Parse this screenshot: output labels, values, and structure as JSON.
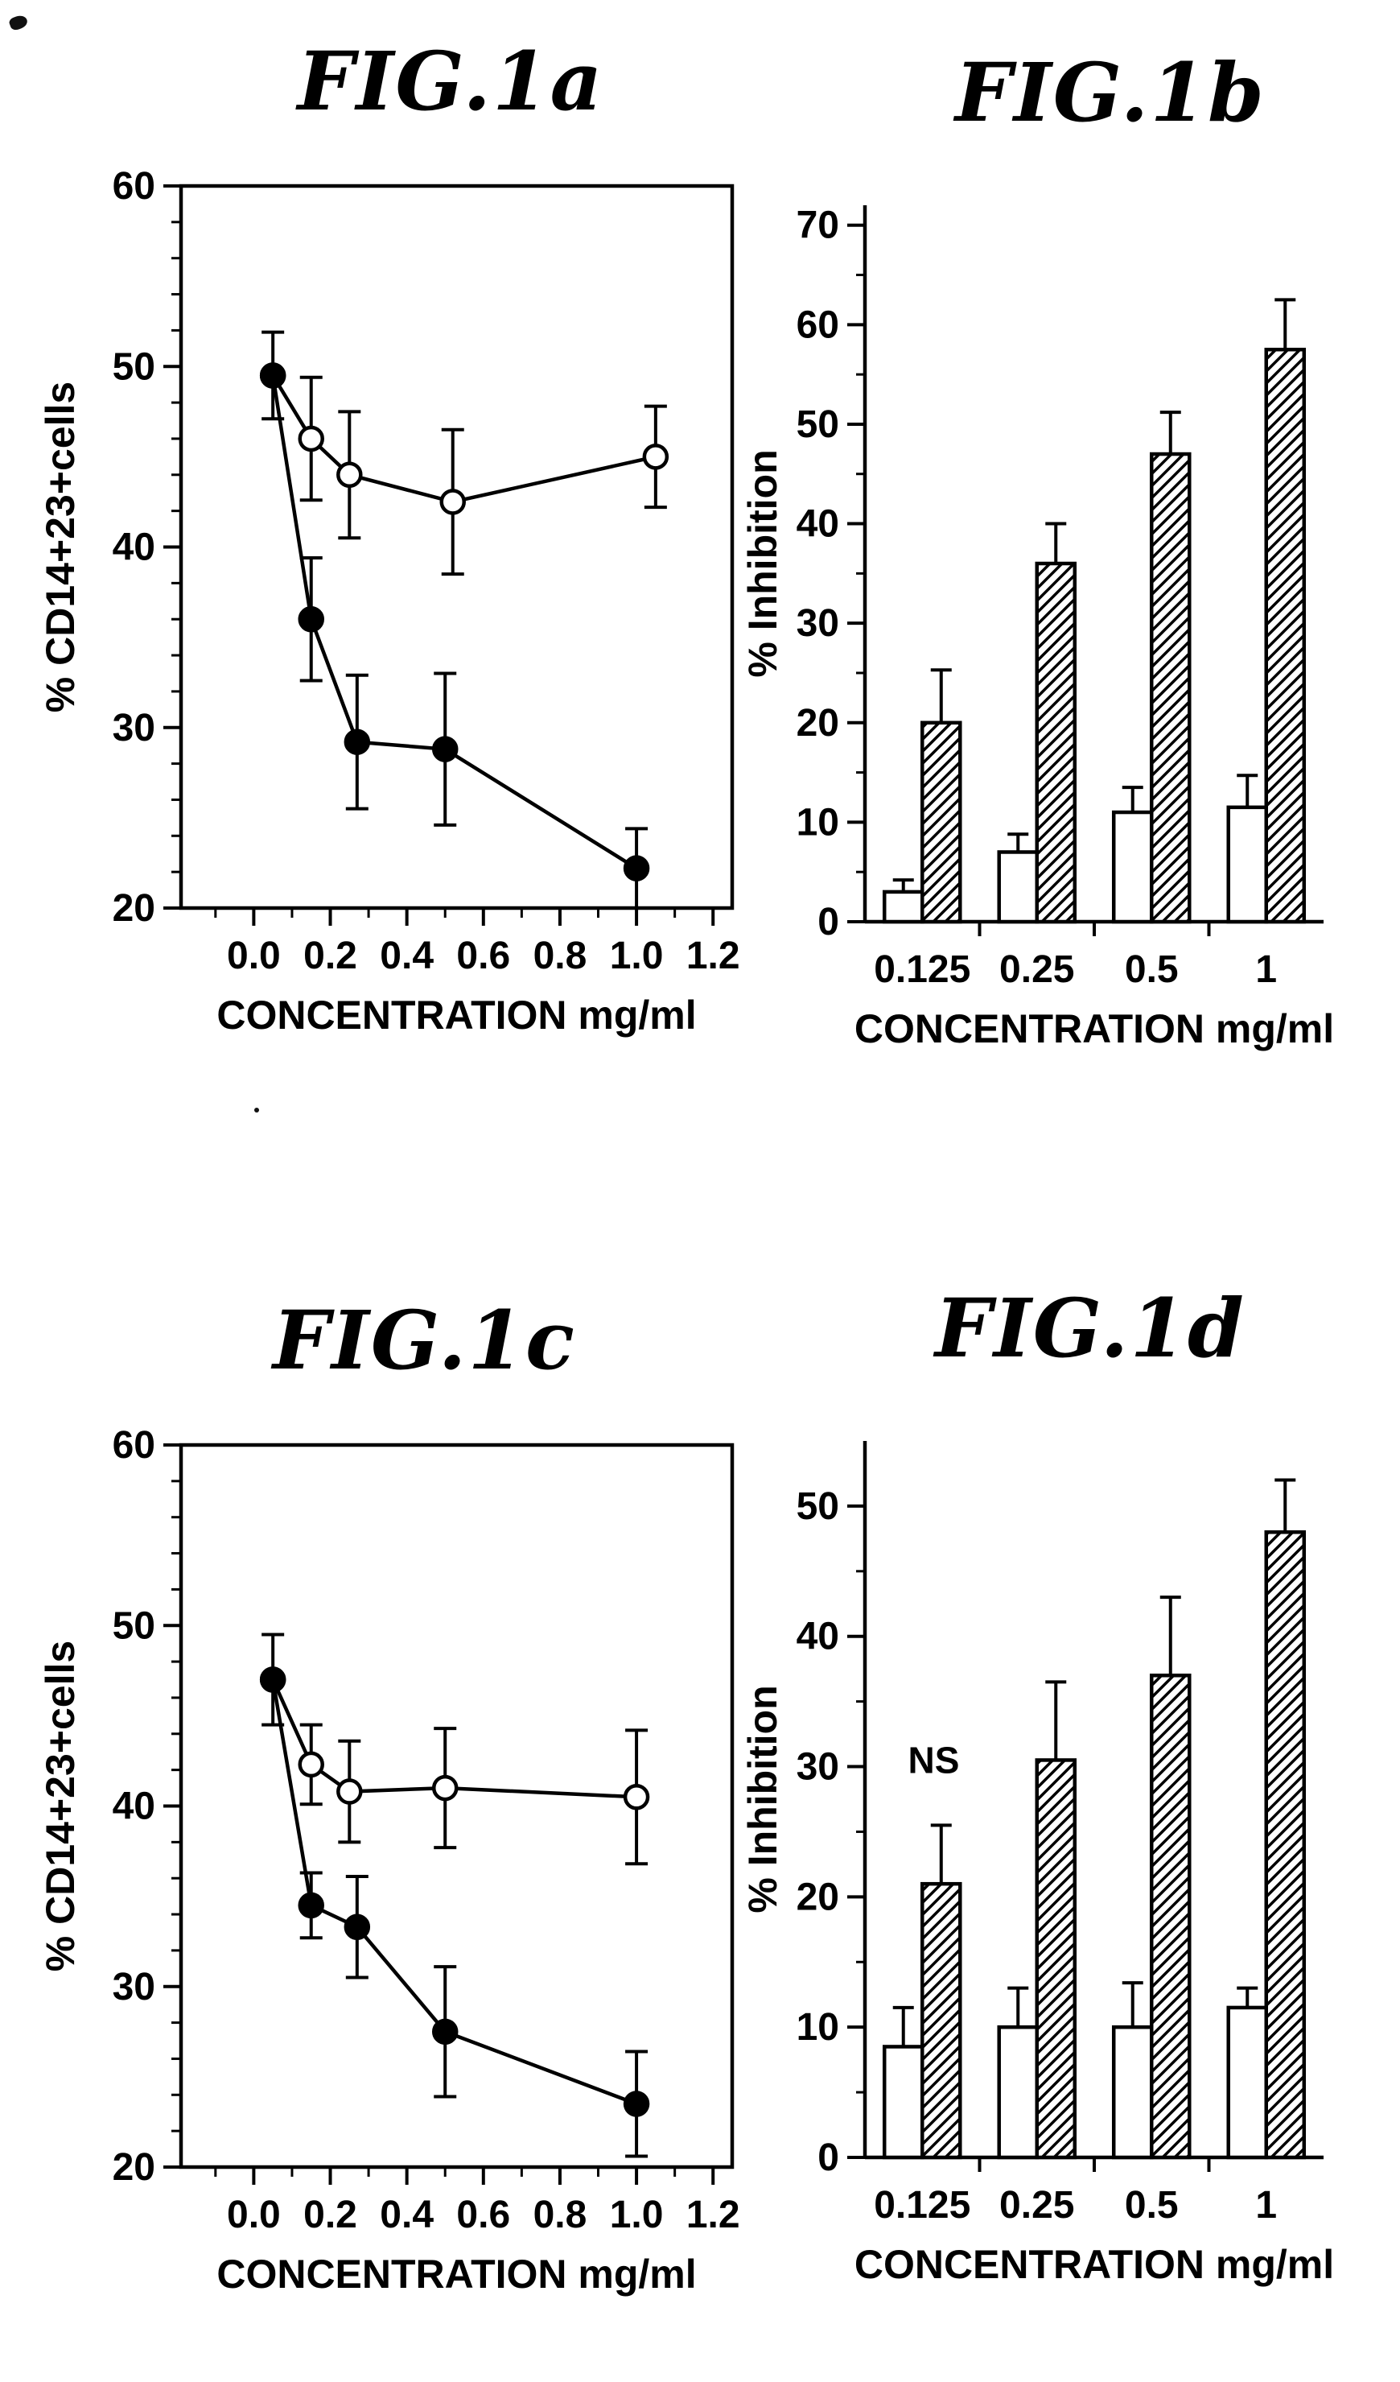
{
  "page": {
    "background": "#ffffff",
    "ink": "#000000"
  },
  "figures": [
    {
      "id": "fig1a",
      "title": "FIG.1a"
    },
    {
      "id": "fig1b",
      "title": "FIG.1b"
    },
    {
      "id": "fig1c",
      "title": "FIG.1c"
    },
    {
      "id": "fig1d",
      "title": "FIG.1d"
    }
  ],
  "chart_data": [
    {
      "type": "line",
      "title": "FIG.1a",
      "xlabel": "CONCENTRATION  mg/ml",
      "ylabel": "% CD14+23+cells",
      "xlim": [
        -0.19,
        1.25
      ],
      "ylim": [
        20,
        60
      ],
      "xticks": [
        0.0,
        0.2,
        0.4,
        0.6,
        0.8,
        1.0,
        1.2
      ],
      "xtick_labels": [
        "0.0",
        "0.2",
        "0.4",
        "0.6",
        "0.8",
        "1.0",
        "1.2"
      ],
      "x_minor_step": 0.1,
      "yticks": [
        20,
        30,
        40,
        50,
        60
      ],
      "y_minor_step": 2,
      "box": true,
      "grid": false,
      "legend": "none",
      "series": [
        {
          "name": "open-circles",
          "marker": "open",
          "x": [
            0.05,
            0.15,
            0.25,
            0.52,
            1.05
          ],
          "y": [
            49.5,
            46.0,
            44.0,
            42.5,
            45.0
          ],
          "yerr": [
            null,
            3.4,
            3.5,
            4.0,
            2.8
          ]
        },
        {
          "name": "filled-circles",
          "marker": "filled",
          "x": [
            0.05,
            0.15,
            0.27,
            0.5,
            1.0
          ],
          "y": [
            49.5,
            36.0,
            29.2,
            28.8,
            22.2
          ],
          "yerr": [
            2.4,
            3.4,
            3.7,
            4.2,
            2.2
          ]
        }
      ]
    },
    {
      "type": "bar",
      "title": "FIG.1b",
      "xlabel": "CONCENTRATION  mg/ml",
      "ylabel": "% Inhibition",
      "ylim": [
        0,
        72
      ],
      "yticks": [
        0,
        10,
        20,
        30,
        40,
        50,
        60,
        70
      ],
      "y_minor_step": 5,
      "categories": [
        "0.125",
        "0.25",
        "0.5",
        "1"
      ],
      "grid": false,
      "legend": "none",
      "series": [
        {
          "name": "open-bars",
          "style": "open",
          "values": [
            3,
            7,
            11,
            11.5
          ],
          "yerr": [
            1.2,
            1.8,
            2.5,
            3.2
          ]
        },
        {
          "name": "hatched-bars",
          "style": "hatched",
          "values": [
            20,
            36,
            47,
            57.5
          ],
          "yerr": [
            5.3,
            4.0,
            4.2,
            5.0
          ]
        }
      ],
      "annotations": []
    },
    {
      "type": "line",
      "title": "FIG.1c",
      "xlabel": "CONCENTRATION  mg/ml",
      "ylabel": "% CD14+23+cells",
      "xlim": [
        -0.19,
        1.25
      ],
      "ylim": [
        20,
        60
      ],
      "xticks": [
        0.0,
        0.2,
        0.4,
        0.6,
        0.8,
        1.0,
        1.2
      ],
      "xtick_labels": [
        "0.0",
        "0.2",
        "0.4",
        "0.6",
        "0.8",
        "1.0",
        "1.2"
      ],
      "x_minor_step": 0.1,
      "yticks": [
        20,
        30,
        40,
        50,
        60
      ],
      "y_minor_step": 2,
      "box": true,
      "grid": false,
      "legend": "none",
      "series": [
        {
          "name": "open-circles",
          "marker": "open",
          "x": [
            0.05,
            0.15,
            0.25,
            0.5,
            1.0
          ],
          "y": [
            47.0,
            42.3,
            40.8,
            41.0,
            40.5
          ],
          "yerr": [
            null,
            2.2,
            2.8,
            3.3,
            3.7
          ]
        },
        {
          "name": "filled-circles",
          "marker": "filled",
          "x": [
            0.05,
            0.15,
            0.27,
            0.5,
            1.0
          ],
          "y": [
            47.0,
            34.5,
            33.3,
            27.5,
            23.5
          ],
          "yerr": [
            2.5,
            1.8,
            2.8,
            3.6,
            2.9
          ]
        }
      ]
    },
    {
      "type": "bar",
      "title": "FIG.1d",
      "xlabel": "CONCENTRATION  mg/ml",
      "ylabel": "% Inhibition",
      "ylim": [
        0,
        55
      ],
      "yticks": [
        0,
        10,
        20,
        30,
        40,
        50
      ],
      "y_minor_step": 5,
      "categories": [
        "0.125",
        "0.25",
        "0.5",
        "1"
      ],
      "grid": false,
      "legend": "none",
      "series": [
        {
          "name": "open-bars",
          "style": "open",
          "values": [
            8.5,
            10,
            10,
            11.5
          ],
          "yerr": [
            3.0,
            3.0,
            3.4,
            1.5
          ]
        },
        {
          "name": "hatched-bars",
          "style": "hatched",
          "values": [
            21,
            30.5,
            37,
            48
          ],
          "yerr": [
            4.5,
            6.0,
            6.0,
            4.0
          ]
        }
      ],
      "annotations": [
        {
          "text": "NS",
          "category_index": 0,
          "x_frac": 0.6,
          "y": 29.5
        }
      ]
    }
  ]
}
